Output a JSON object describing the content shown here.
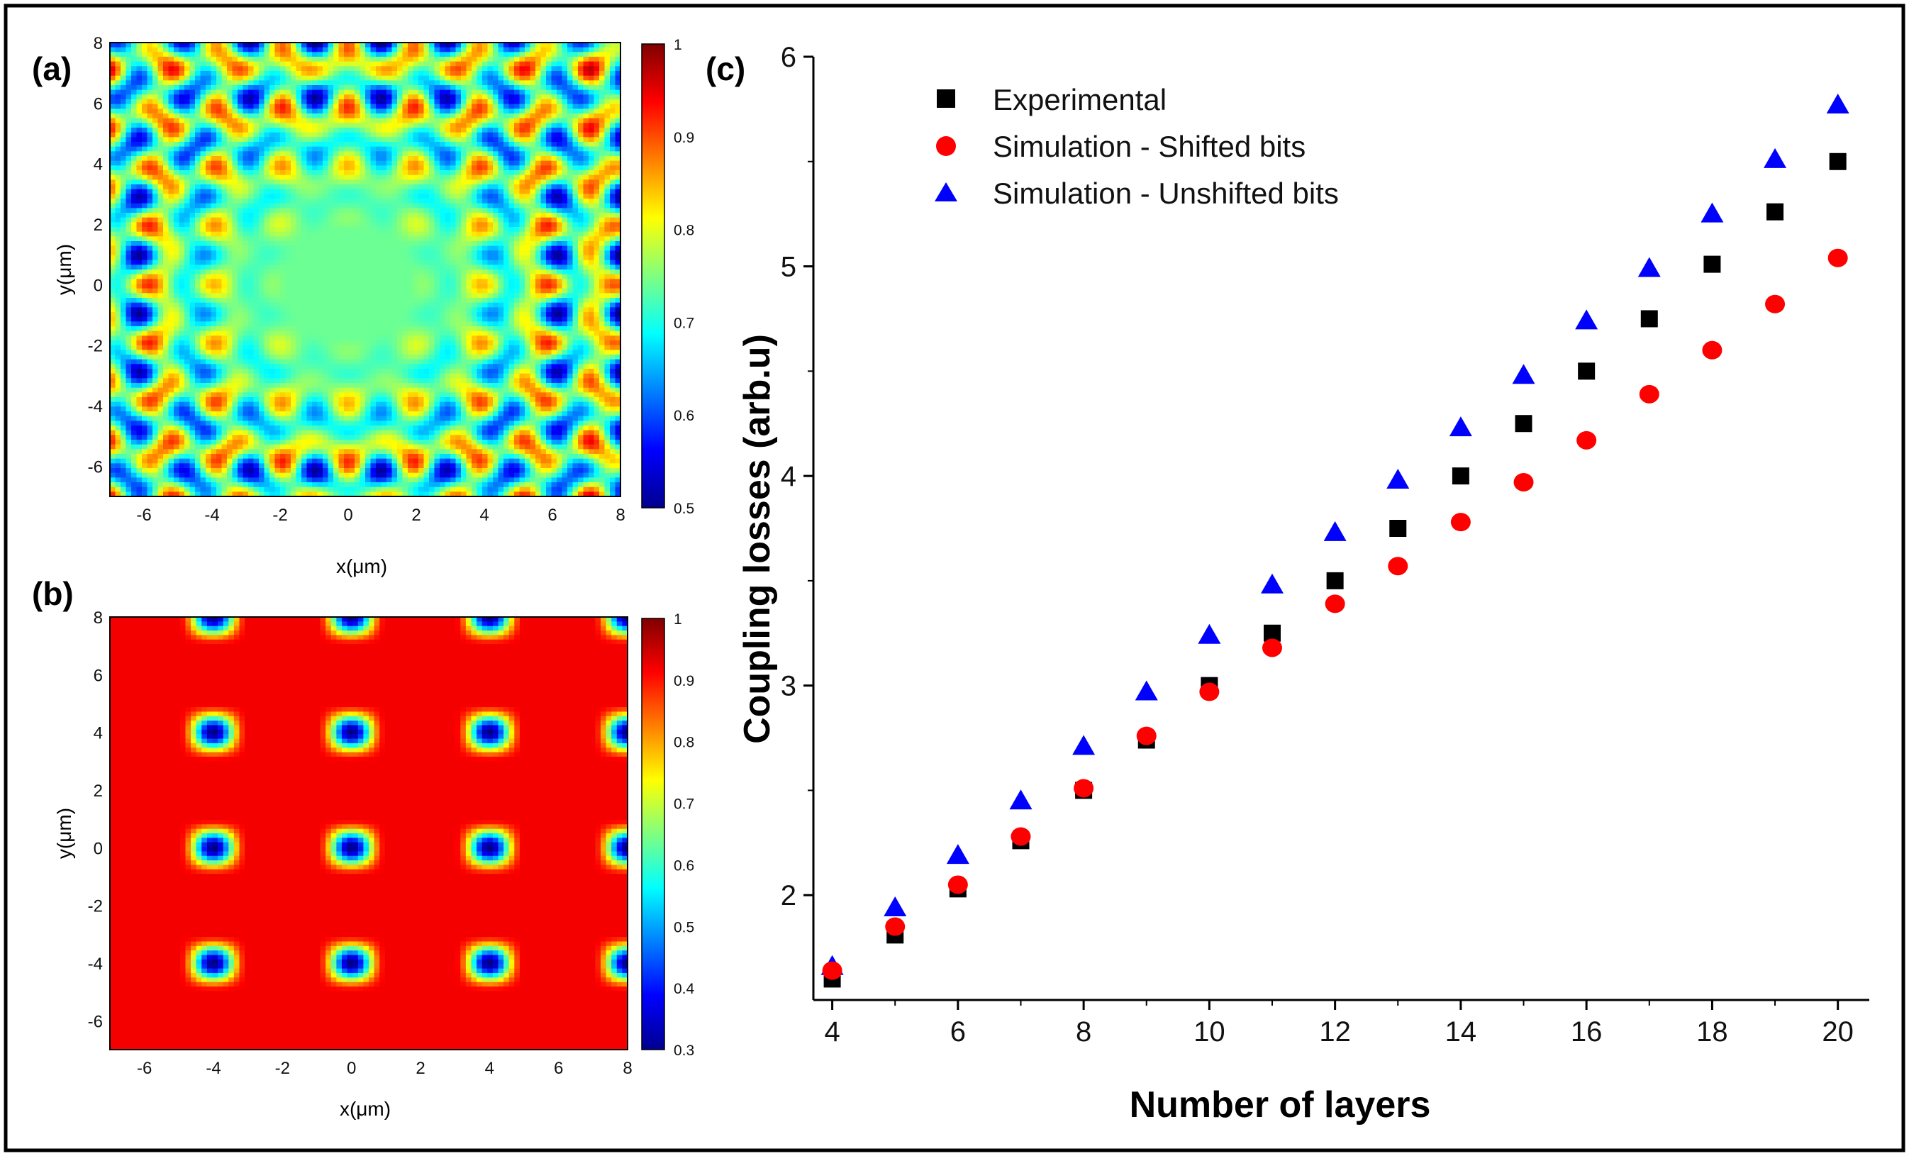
{
  "panels": {
    "a": {
      "label": "(a)",
      "xlabel": "x(μm)",
      "ylabel": "y(μm)",
      "xticks": [
        "-6",
        "-4",
        "-2",
        "0",
        "2",
        "4",
        "6",
        "8"
      ],
      "yticks": [
        "8",
        "6",
        "4",
        "2",
        "0",
        "-2",
        "-4",
        "-6"
      ],
      "colorbar_ticks": [
        "1",
        "0.9",
        "0.8",
        "0.7",
        "0.6",
        "0.5"
      ],
      "colorbar_range": [
        0.5,
        1
      ]
    },
    "b": {
      "label": "(b)",
      "xlabel": "x(μm)",
      "ylabel": "y(μm)",
      "xticks": [
        "-6",
        "-4",
        "-2",
        "0",
        "2",
        "4",
        "6",
        "8"
      ],
      "yticks": [
        "8",
        "6",
        "4",
        "2",
        "0",
        "-2",
        "-4",
        "-6"
      ],
      "colorbar_ticks": [
        "1",
        "0.9",
        "0.8",
        "0.7",
        "0.6",
        "0.5",
        "0.4",
        "0.3"
      ],
      "colorbar_range": [
        0.3,
        1
      ]
    },
    "c": {
      "label": "(c)"
    }
  },
  "colors": {
    "experimental": "#000000",
    "shifted": "#ff0000",
    "unshifted": "#0000ff",
    "map_high": "#8b0000",
    "map_low": "#00008f"
  },
  "chart_data": [
    {
      "type": "heatmap",
      "panel": "a",
      "xlabel": "x(μm)",
      "ylabel": "y(μm)",
      "xlim": [
        -7,
        8
      ],
      "ylim": [
        -7,
        8
      ],
      "zlim": [
        0.5,
        1
      ]
    },
    {
      "type": "heatmap",
      "panel": "b",
      "xlabel": "x(μm)",
      "ylabel": "y(μm)",
      "xlim": [
        -7,
        8
      ],
      "ylim": [
        -7,
        8
      ],
      "zlim": [
        0.3,
        1
      ]
    },
    {
      "type": "scatter",
      "panel": "c",
      "xlabel": "Number of layers",
      "ylabel": "Coupling losses (arb.u)",
      "xlim": [
        3.7,
        20.5
      ],
      "ylim": [
        1.5,
        6
      ],
      "xticks": [
        4,
        6,
        8,
        10,
        12,
        14,
        16,
        18,
        20
      ],
      "yticks": [
        2,
        3,
        4,
        5,
        6
      ],
      "legend_position": "top-left",
      "x": [
        4,
        5,
        6,
        7,
        8,
        9,
        10,
        11,
        12,
        13,
        14,
        15,
        16,
        17,
        18,
        19,
        20
      ],
      "series": [
        {
          "name": "Experimental",
          "marker": "square",
          "values": [
            1.6,
            1.81,
            2.03,
            2.26,
            2.5,
            2.74,
            3.0,
            3.25,
            3.5,
            3.75,
            4.0,
            4.25,
            4.5,
            4.75,
            5.01,
            5.26,
            5.5
          ]
        },
        {
          "name": "Simulation - Shifted bits",
          "marker": "circle",
          "values": [
            1.64,
            1.85,
            2.05,
            2.28,
            2.51,
            2.76,
            2.97,
            3.18,
            3.39,
            3.57,
            3.78,
            3.97,
            4.17,
            4.39,
            4.6,
            4.82,
            5.04
          ]
        },
        {
          "name": "Simulation - Unshifted bits",
          "marker": "triangle",
          "values": [
            1.66,
            1.94,
            2.19,
            2.45,
            2.71,
            2.97,
            3.24,
            3.48,
            3.73,
            3.98,
            4.23,
            4.48,
            4.74,
            4.99,
            5.25,
            5.51,
            5.77
          ]
        }
      ]
    }
  ]
}
